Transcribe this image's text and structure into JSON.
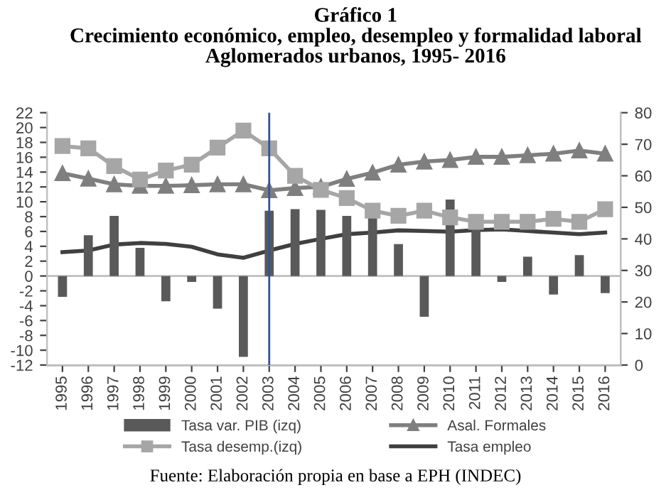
{
  "chart_data": {
    "type": "bar",
    "title": "Gráfico 1\nCrecimiento económico, empleo, desempleo y formalidad laboral\nAglomerados urbanos, 1995- 2016",
    "categories": [
      "1995",
      "1996",
      "1997",
      "1998",
      "1999",
      "2000",
      "2001",
      "2002",
      "2003",
      "2004",
      "2005",
      "2006",
      "2007",
      "2008",
      "2009",
      "2010",
      "2011",
      "2012",
      "2013",
      "2014",
      "2015",
      "2016"
    ],
    "series": [
      {
        "name": "Tasa var. PIB (izq)",
        "color": "#595959",
        "values": [
          -2.8,
          5.5,
          8.1,
          3.8,
          -3.4,
          -0.8,
          -4.4,
          -10.9,
          8.8,
          9.0,
          8.9,
          8.1,
          8.0,
          4.3,
          -5.5,
          10.3,
          6.4,
          -0.8,
          2.6,
          -2.5,
          2.8,
          -2.3
        ]
      },
      {
        "name": "Tasa desemp.(izq)",
        "type": "line",
        "marker": "square",
        "color": "#a6a6a6",
        "values": [
          17.5,
          17.2,
          14.8,
          13.0,
          14.2,
          15.0,
          17.3,
          19.6,
          17.2,
          13.5,
          11.6,
          10.5,
          8.8,
          8.1,
          8.8,
          7.9,
          7.3,
          7.3,
          7.3,
          7.7,
          7.3,
          9.0
        ]
      },
      {
        "name": "Asal. Formales",
        "type": "line",
        "marker": "triangle",
        "axis": "y2",
        "color": "#7f7f7f",
        "values": [
          60.8,
          59.1,
          57.3,
          56.8,
          56.8,
          57.0,
          57.3,
          57.3,
          55.4,
          56.1,
          56.5,
          59.0,
          61.0,
          63.5,
          64.5,
          65.0,
          66.0,
          66.0,
          66.5,
          67.0,
          68.0,
          67.0
        ]
      },
      {
        "name": "Tasa empleo",
        "type": "line",
        "axis": "y2",
        "color": "#404040",
        "values": [
          35.8,
          36.3,
          38.2,
          38.7,
          38.4,
          37.5,
          35.1,
          34.0,
          36.3,
          38.4,
          40.0,
          41.5,
          42.0,
          42.7,
          42.5,
          42.3,
          42.8,
          43.0,
          42.5,
          42.0,
          41.5,
          42.0
        ]
      }
    ],
    "ylim": [
      -12,
      22
    ],
    "yticks": [
      -12,
      -10,
      -8,
      -6,
      -4,
      -2,
      0,
      2,
      4,
      6,
      8,
      10,
      12,
      14,
      16,
      18,
      20,
      22
    ],
    "y2lim": [
      0,
      80
    ],
    "y2ticks": [
      0,
      10,
      20,
      30,
      40,
      50,
      60,
      70,
      80
    ],
    "ref_lines": [
      {
        "axis": "x",
        "value": "2003",
        "color": "#2f5597"
      }
    ],
    "grid": false,
    "legend": "bottom",
    "annotations": [
      "Fuente: Elaboración propia en base a EPH (INDEC)"
    ]
  }
}
